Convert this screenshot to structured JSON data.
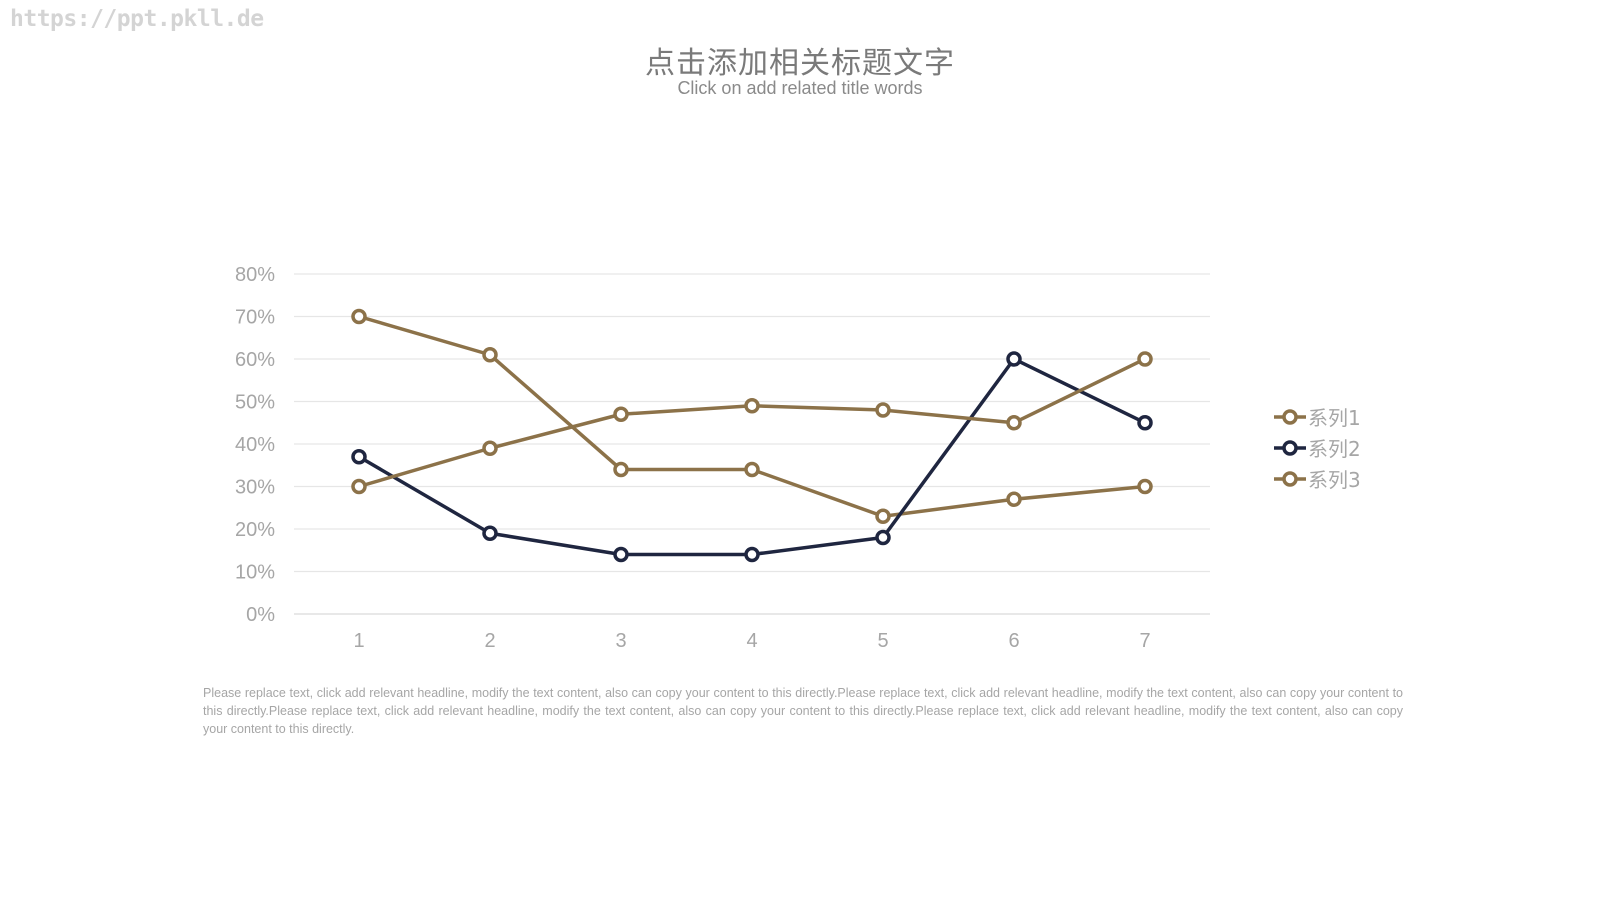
{
  "watermark": "https://ppt.pkll.de",
  "header": {
    "title": "点击添加相关标题文字",
    "subtitle": "Click on add related title words"
  },
  "body_text": "Please replace text, click add relevant headline, modify the text content, also can copy your content to this directly.Please replace text, click add relevant headline, modify the text content, also can copy your content to this directly.Please replace text, click add relevant headline, modify the text content, also can copy your content to this directly.Please replace text, click add relevant headline, modify the text content, also can copy your content to this directly.",
  "chart_data": {
    "type": "line",
    "title": "",
    "xlabel": "",
    "ylabel": "",
    "categories": [
      "1",
      "2",
      "3",
      "4",
      "5",
      "6",
      "7"
    ],
    "ylim": [
      0,
      0.8
    ],
    "yticks": [
      "0%",
      "10%",
      "20%",
      "30%",
      "40%",
      "50%",
      "60%",
      "70%",
      "80%"
    ],
    "grid": true,
    "legend_position": "right",
    "series": [
      {
        "name": "系列1",
        "color": "#8c7249",
        "values": [
          0.7,
          0.61,
          0.34,
          0.34,
          0.23,
          0.27,
          0.3
        ]
      },
      {
        "name": "系列2",
        "color": "#1f2640",
        "values": [
          0.37,
          0.19,
          0.14,
          0.14,
          0.18,
          0.6,
          0.45
        ]
      },
      {
        "name": "系列3",
        "color": "#8c7249",
        "values": [
          0.3,
          0.39,
          0.47,
          0.49,
          0.48,
          0.45,
          0.6
        ]
      }
    ]
  }
}
